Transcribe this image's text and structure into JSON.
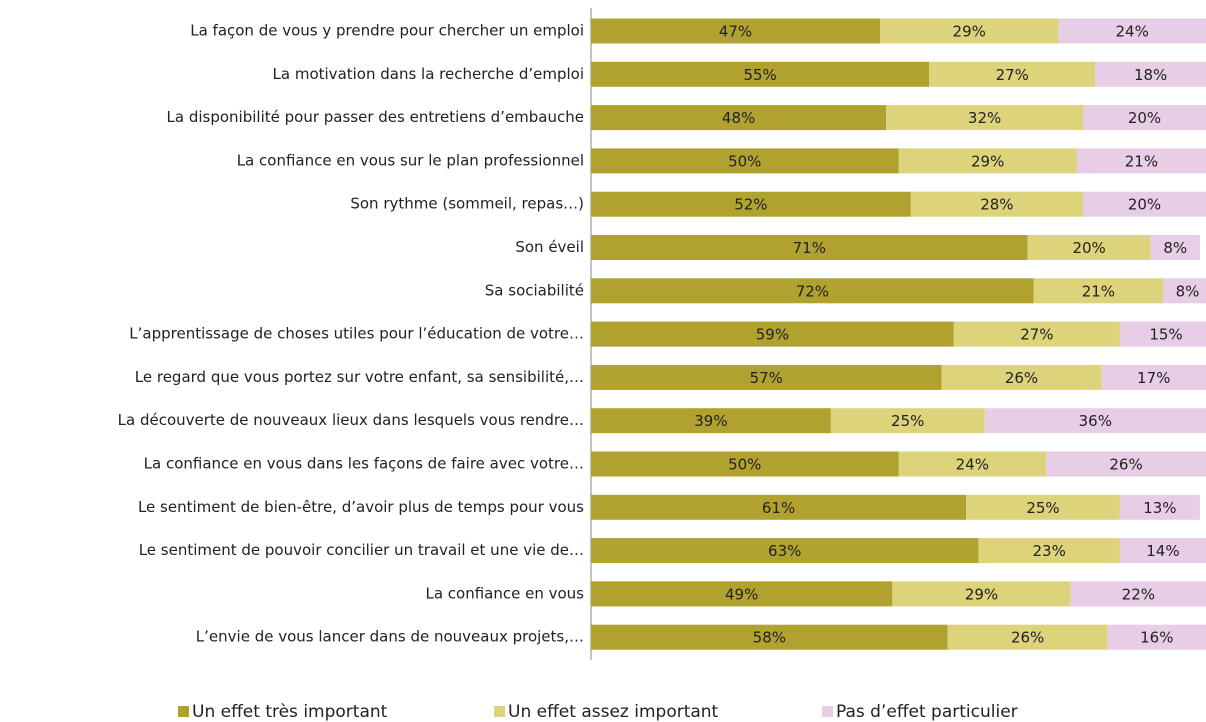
{
  "chart_data": {
    "type": "stacked_barh",
    "categories": [
      "La façon de vous y prendre pour chercher un emploi",
      "La motivation dans la recherche d’emploi",
      "La disponibilité pour passer des entretiens d’embauche",
      "La confiance en vous sur le plan professionnel",
      "Son rythme (sommeil, repas…)",
      "Son éveil",
      "Sa sociabilité",
      "L’apprentissage de choses utiles pour l’éducation de votre…",
      "Le regard que vous portez sur votre enfant, sa sensibilité,…",
      "La découverte de nouveaux lieux dans lesquels vous rendre…",
      "La confiance en vous dans les façons de faire avec votre…",
      "Le sentiment de bien-être, d’avoir plus de temps pour vous",
      "Le sentiment de pouvoir concilier un travail et une vie de…",
      "La confiance en vous",
      "L’envie de vous lancer dans de nouveaux projets,…"
    ],
    "series": [
      {
        "name": "Un effet très important",
        "color": "#b1a22f",
        "values": [
          47,
          55,
          48,
          50,
          52,
          71,
          72,
          59,
          57,
          39,
          50,
          61,
          63,
          49,
          58
        ],
        "value_labels": [
          "47%",
          "55%",
          "48%",
          "50%",
          "52%",
          "71%",
          "72%",
          "59%",
          "57%",
          "39%",
          "50%",
          "61%",
          "63%",
          "49%",
          "58%"
        ]
      },
      {
        "name": "Un effet assez important",
        "color": "#dcd37a",
        "values": [
          29,
          27,
          32,
          29,
          28,
          20,
          21,
          27,
          26,
          25,
          24,
          25,
          23,
          29,
          26
        ],
        "value_labels": [
          "29%",
          "27%",
          "32%",
          "29%",
          "28%",
          "20%",
          "21%",
          "27%",
          "26%",
          "25%",
          "24%",
          "25%",
          "23%",
          "29%",
          "26%"
        ]
      },
      {
        "name": "Pas d’effet particulier",
        "color": "#e7cde6",
        "values": [
          24,
          18,
          20,
          21,
          20,
          8,
          8,
          15,
          17,
          36,
          26,
          13,
          14,
          22,
          16
        ],
        "value_labels": [
          "24%",
          "18%",
          "20%",
          "21%",
          "20%",
          "8%",
          "8%",
          "15%",
          "17%",
          "36%",
          "26%",
          "13%",
          "14%",
          "22%",
          "16%"
        ]
      }
    ],
    "xlim": [
      0,
      100
    ],
    "legend": "bottom"
  }
}
